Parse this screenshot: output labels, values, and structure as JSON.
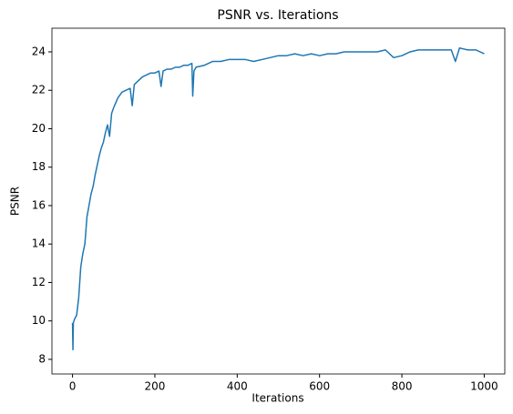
{
  "chart_data": {
    "type": "line",
    "title": "PSNR vs. Iterations",
    "x_label": "Iterations",
    "y_label": "PSNR",
    "x": [
      0,
      1,
      2,
      5,
      10,
      15,
      20,
      25,
      30,
      35,
      40,
      45,
      50,
      55,
      60,
      65,
      70,
      75,
      80,
      85,
      90,
      95,
      100,
      110,
      120,
      130,
      140,
      145,
      150,
      160,
      170,
      180,
      190,
      200,
      210,
      215,
      220,
      230,
      240,
      250,
      260,
      270,
      280,
      290,
      292,
      295,
      300,
      320,
      340,
      360,
      380,
      400,
      420,
      440,
      460,
      480,
      500,
      520,
      540,
      560,
      580,
      600,
      620,
      640,
      660,
      680,
      700,
      720,
      740,
      760,
      780,
      800,
      820,
      840,
      860,
      880,
      900,
      920,
      930,
      940,
      960,
      980,
      1000
    ],
    "series": [
      {
        "name": "PSNR",
        "color": "#1f77b4",
        "values": [
          9.9,
          8.5,
          9.9,
          10.1,
          10.3,
          11.2,
          12.8,
          13.5,
          14.0,
          15.4,
          16.0,
          16.6,
          17.0,
          17.6,
          18.1,
          18.6,
          19.0,
          19.3,
          19.8,
          20.2,
          19.6,
          20.8,
          21.1,
          21.6,
          21.9,
          22.0,
          22.1,
          21.2,
          22.3,
          22.5,
          22.7,
          22.8,
          22.9,
          22.9,
          23.0,
          22.2,
          23.0,
          23.1,
          23.1,
          23.2,
          23.2,
          23.3,
          23.3,
          23.4,
          21.7,
          23.0,
          23.2,
          23.3,
          23.5,
          23.5,
          23.6,
          23.6,
          23.6,
          23.5,
          23.6,
          23.7,
          23.8,
          23.8,
          23.9,
          23.8,
          23.9,
          23.8,
          23.9,
          23.9,
          24.0,
          24.0,
          24.0,
          24.0,
          24.0,
          24.1,
          23.7,
          23.8,
          24.0,
          24.1,
          24.1,
          24.1,
          24.1,
          24.1,
          23.5,
          24.2,
          24.1,
          24.1,
          23.9
        ]
      }
    ],
    "xlim": [
      -50,
      1050
    ],
    "ylim": [
      7.24,
      25.23
    ],
    "xticks": [
      0,
      200,
      400,
      600,
      800,
      1000
    ],
    "yticks": [
      8,
      10,
      12,
      14,
      16,
      18,
      20,
      22,
      24
    ]
  }
}
